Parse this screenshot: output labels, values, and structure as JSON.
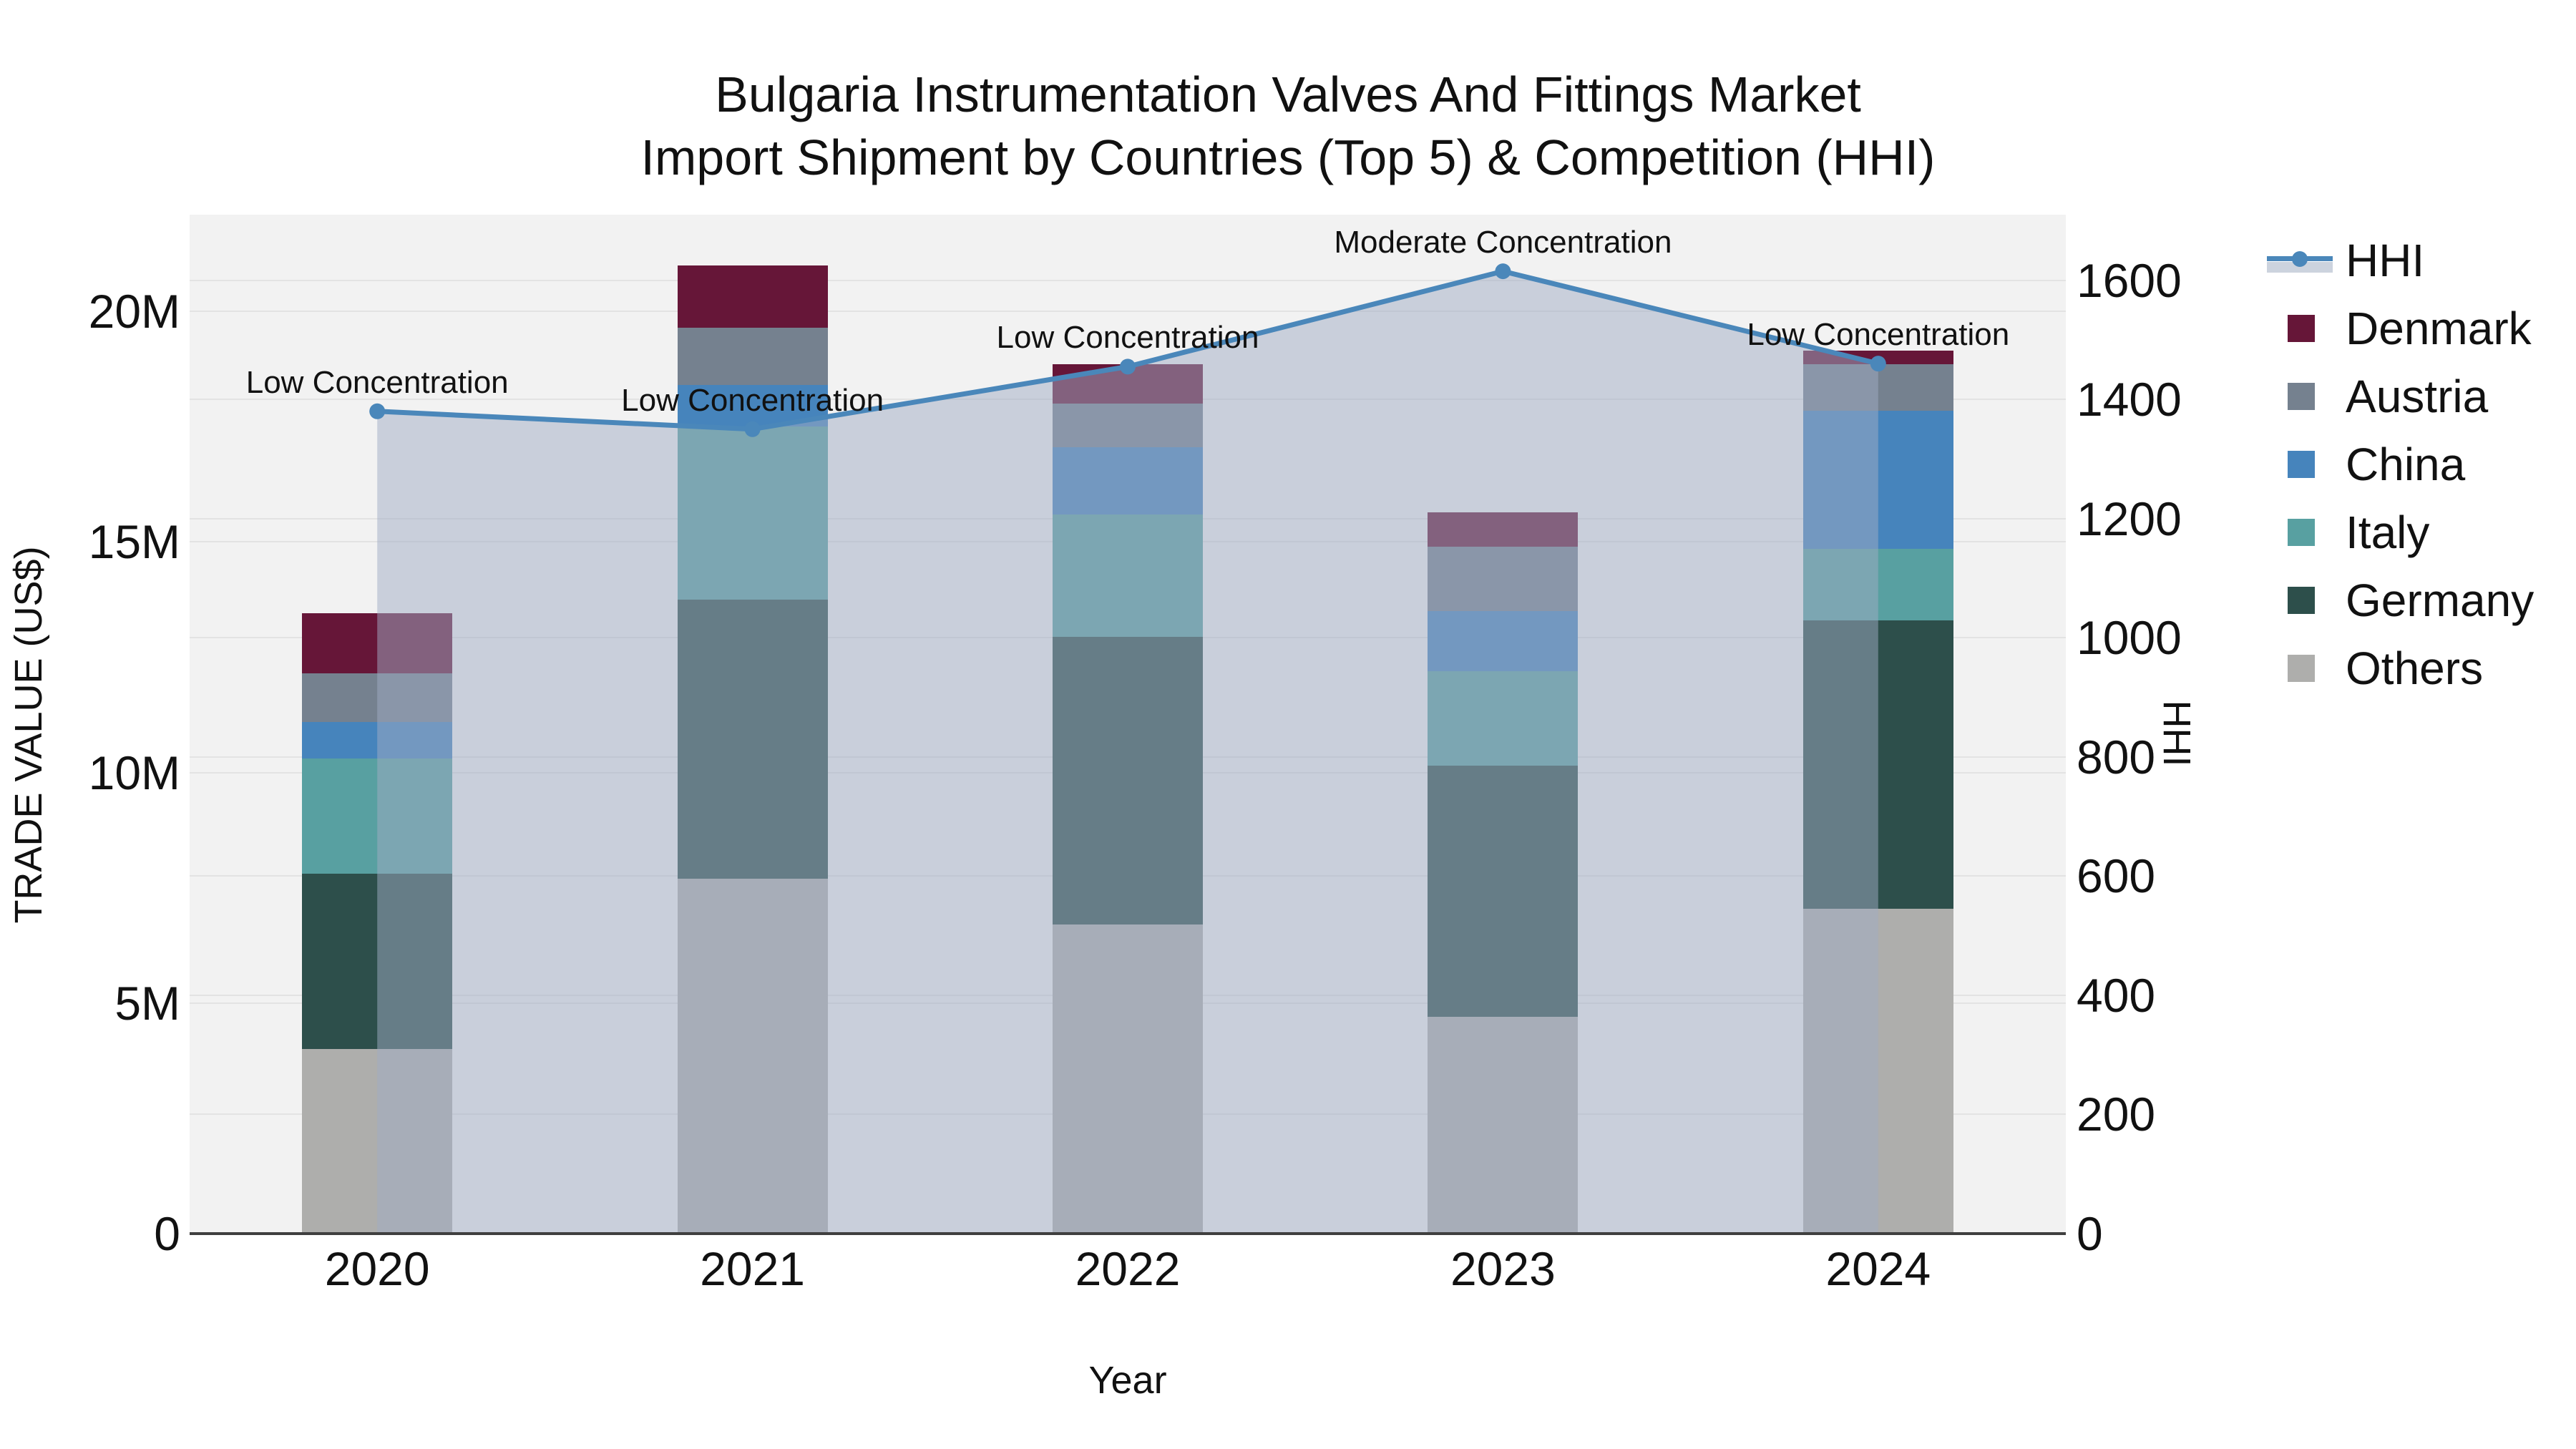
{
  "chart_data": {
    "type": "stacked-bar+line",
    "title_line1": "Bulgaria Instrumentation Valves And Fittings Market",
    "title_line2": "Import Shipment by Countries (Top 5) & Competition (HHI)",
    "xlabel": "Year",
    "ylabel_left": "TRADE VALUE (US$)",
    "ylabel_right": "HHI",
    "categories": [
      "2020",
      "2021",
      "2022",
      "2023",
      "2024"
    ],
    "series": [
      {
        "name": "Denmark",
        "color": "#661638",
        "values_musd": [
          1.3,
          1.35,
          0.85,
          0.75,
          0.3
        ]
      },
      {
        "name": "Austria",
        "color": "#75818f",
        "values_musd": [
          1.05,
          1.25,
          0.95,
          1.4,
          1.0
        ]
      },
      {
        "name": "China",
        "color": "#4684bc",
        "values_musd": [
          0.8,
          0.9,
          1.45,
          1.3,
          3.0
        ]
      },
      {
        "name": "Italy",
        "color": "#58a0a1",
        "values_musd": [
          2.5,
          3.75,
          2.65,
          2.05,
          1.55
        ]
      },
      {
        "name": "Germany",
        "color": "#2d4f4b",
        "values_musd": [
          3.8,
          6.05,
          6.25,
          5.45,
          6.25
        ]
      },
      {
        "name": "Others",
        "color": "#aeaeac",
        "values_musd": [
          4.0,
          7.7,
          6.7,
          4.7,
          7.05
        ]
      }
    ],
    "stack_order_bottom_to_top": [
      "Others",
      "Germany",
      "Italy",
      "China",
      "Austria",
      "Denmark"
    ],
    "totals_musd": [
      13.45,
      21.0,
      18.85,
      15.65,
      19.15
    ],
    "hhi": {
      "name": "HHI",
      "color": "#4a87ba",
      "area_color_rgba": "rgba(160,172,195,0.5)",
      "values": [
        1380,
        1350,
        1455,
        1615,
        1460
      ]
    },
    "annotations": [
      "Low Concentration",
      "Low Concentration",
      "Low Concentration",
      "Moderate Concentration",
      "Low Concentration"
    ],
    "axis": {
      "left": {
        "tick_labels": [
          "0",
          "5M",
          "10M",
          "15M",
          "20M"
        ],
        "tick_values_musd": [
          0,
          5,
          10,
          15,
          20
        ],
        "max_musd": 22.1
      },
      "right": {
        "tick_labels": [
          "0",
          "200",
          "400",
          "600",
          "800",
          "1000",
          "1200",
          "1400",
          "1600"
        ],
        "tick_values": [
          0,
          200,
          400,
          600,
          800,
          1000,
          1200,
          1400,
          1600
        ],
        "max": 1710
      }
    },
    "legend_order": [
      "HHI",
      "Denmark",
      "Austria",
      "China",
      "Italy",
      "Germany",
      "Others"
    ],
    "colors": {
      "plot_bg": "#f2f2f2",
      "grid": "#e3e3e3",
      "axis_line": "#3f3f3f",
      "text": "#111111"
    }
  }
}
